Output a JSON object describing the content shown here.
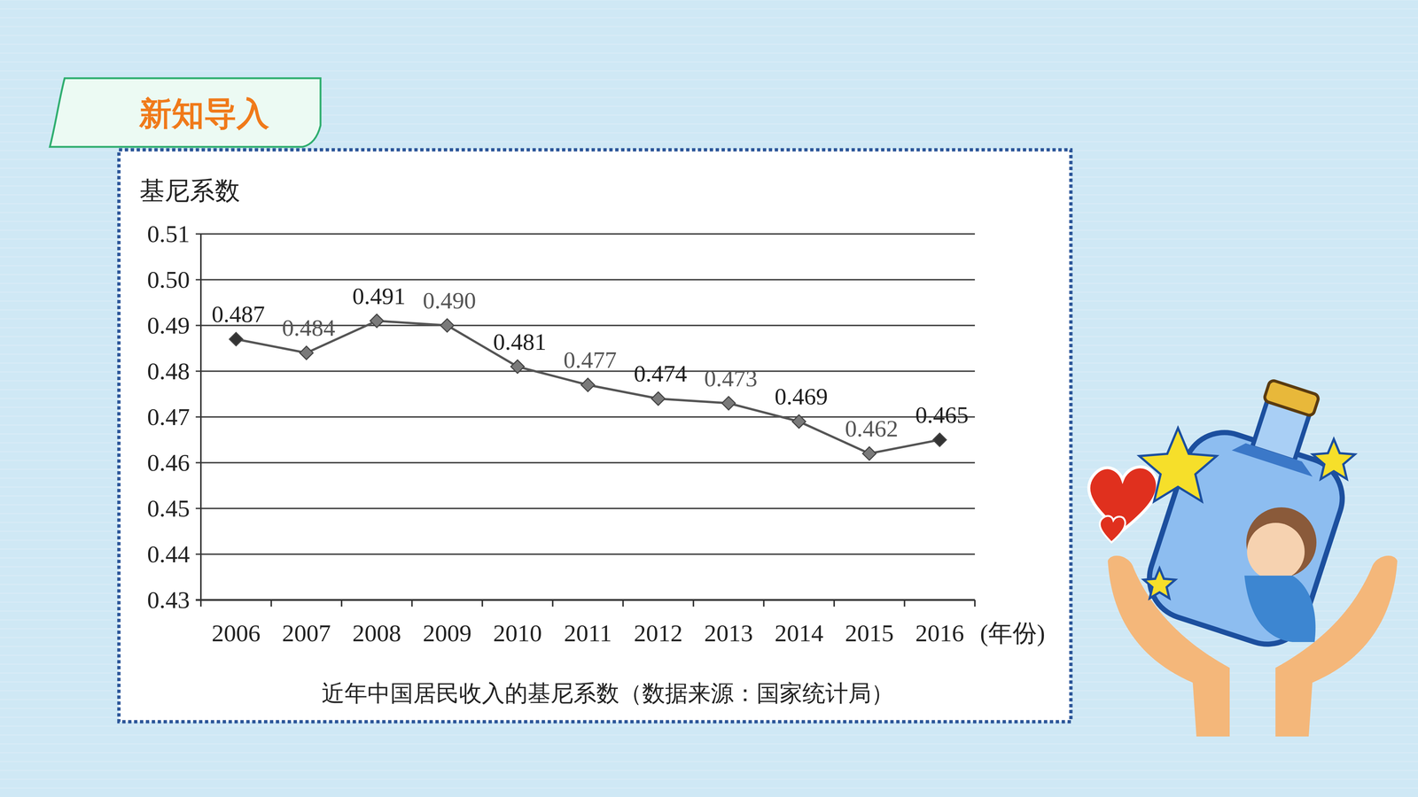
{
  "header": {
    "tab": "新知导入"
  },
  "chart_data": {
    "type": "line",
    "title": "近年中国居民收入的基尼系数（数据来源：国家统计局）",
    "y_label": "基尼系数",
    "x_label": "(年份)",
    "categories": [
      "2006",
      "2007",
      "2008",
      "2009",
      "2010",
      "2011",
      "2012",
      "2013",
      "2014",
      "2015",
      "2016"
    ],
    "values": [
      0.487,
      0.484,
      0.491,
      0.49,
      0.481,
      0.477,
      0.474,
      0.473,
      0.469,
      0.462,
      0.465
    ],
    "value_labels": [
      "0.487",
      "0.484",
      "0.491",
      "0.490",
      "0.481",
      "0.477",
      "0.474",
      "0.473",
      "0.469",
      "0.462",
      "0.465"
    ],
    "ylim": [
      0.43,
      0.51
    ],
    "yticks": [
      0.43,
      0.44,
      0.45,
      0.46,
      0.47,
      0.48,
      0.49,
      {
        "value": 0.5,
        "label": "0.50"
      },
      0.51
    ],
    "grid": true,
    "data_labels": true,
    "color": "#7a7a7a",
    "marker": "diamond",
    "line_style": "solid"
  }
}
